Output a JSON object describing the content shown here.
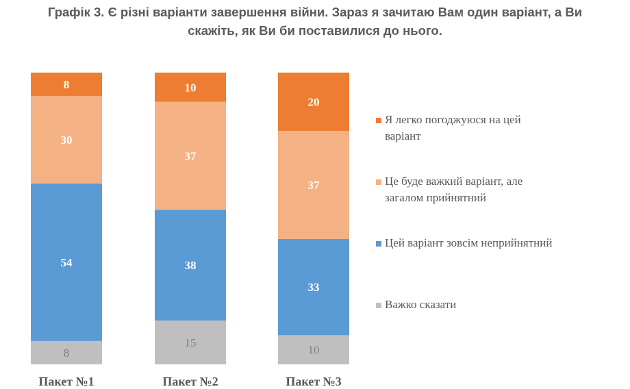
{
  "title": {
    "line1": "Графік 3. Є різні варіанти завершення війни. Зараз я зачитаю Вам один варіант, а Ви",
    "line2": "скажіть, як Ви би поставилися до нього."
  },
  "chart_data": {
    "type": "bar",
    "stacked": true,
    "categories": [
      "Пакет №1",
      "Пакет №2",
      "Пакет №3"
    ],
    "series": [
      {
        "name": "Важко сказати",
        "values": [
          8,
          15,
          10
        ],
        "color": "#bfbfbf",
        "label_color": "#7f7f7f"
      },
      {
        "name": "Цей варіант зовсім неприйнятний",
        "values": [
          54,
          38,
          33
        ],
        "color": "#5b9bd5",
        "label_color": "#ffffff"
      },
      {
        "name": "Це буде важкий варіант, але загалом прийнятний",
        "values": [
          30,
          37,
          37
        ],
        "color": "#f4b183",
        "label_color": "#ffffff"
      },
      {
        "name": "Я легко погоджуюся на цей варіант",
        "values": [
          8,
          10,
          20
        ],
        "color": "#ed7d31",
        "label_color": "#ffffff"
      }
    ],
    "legend": {
      "position": "right",
      "entries": [
        {
          "lines": [
            "Я легко погоджуюся на цей",
            "варіант"
          ],
          "color": "#ed7d31"
        },
        {
          "lines": [
            "Це буде важкий варіант, але",
            "загалом прийнятний"
          ],
          "color": "#f4b183"
        },
        {
          "lines": [
            "Цей варіант зовсім неприйнятний"
          ],
          "color": "#5b9bd5"
        },
        {
          "lines": [
            "Важко сказати"
          ],
          "color": "#bfbfbf"
        }
      ]
    },
    "grid": false
  }
}
